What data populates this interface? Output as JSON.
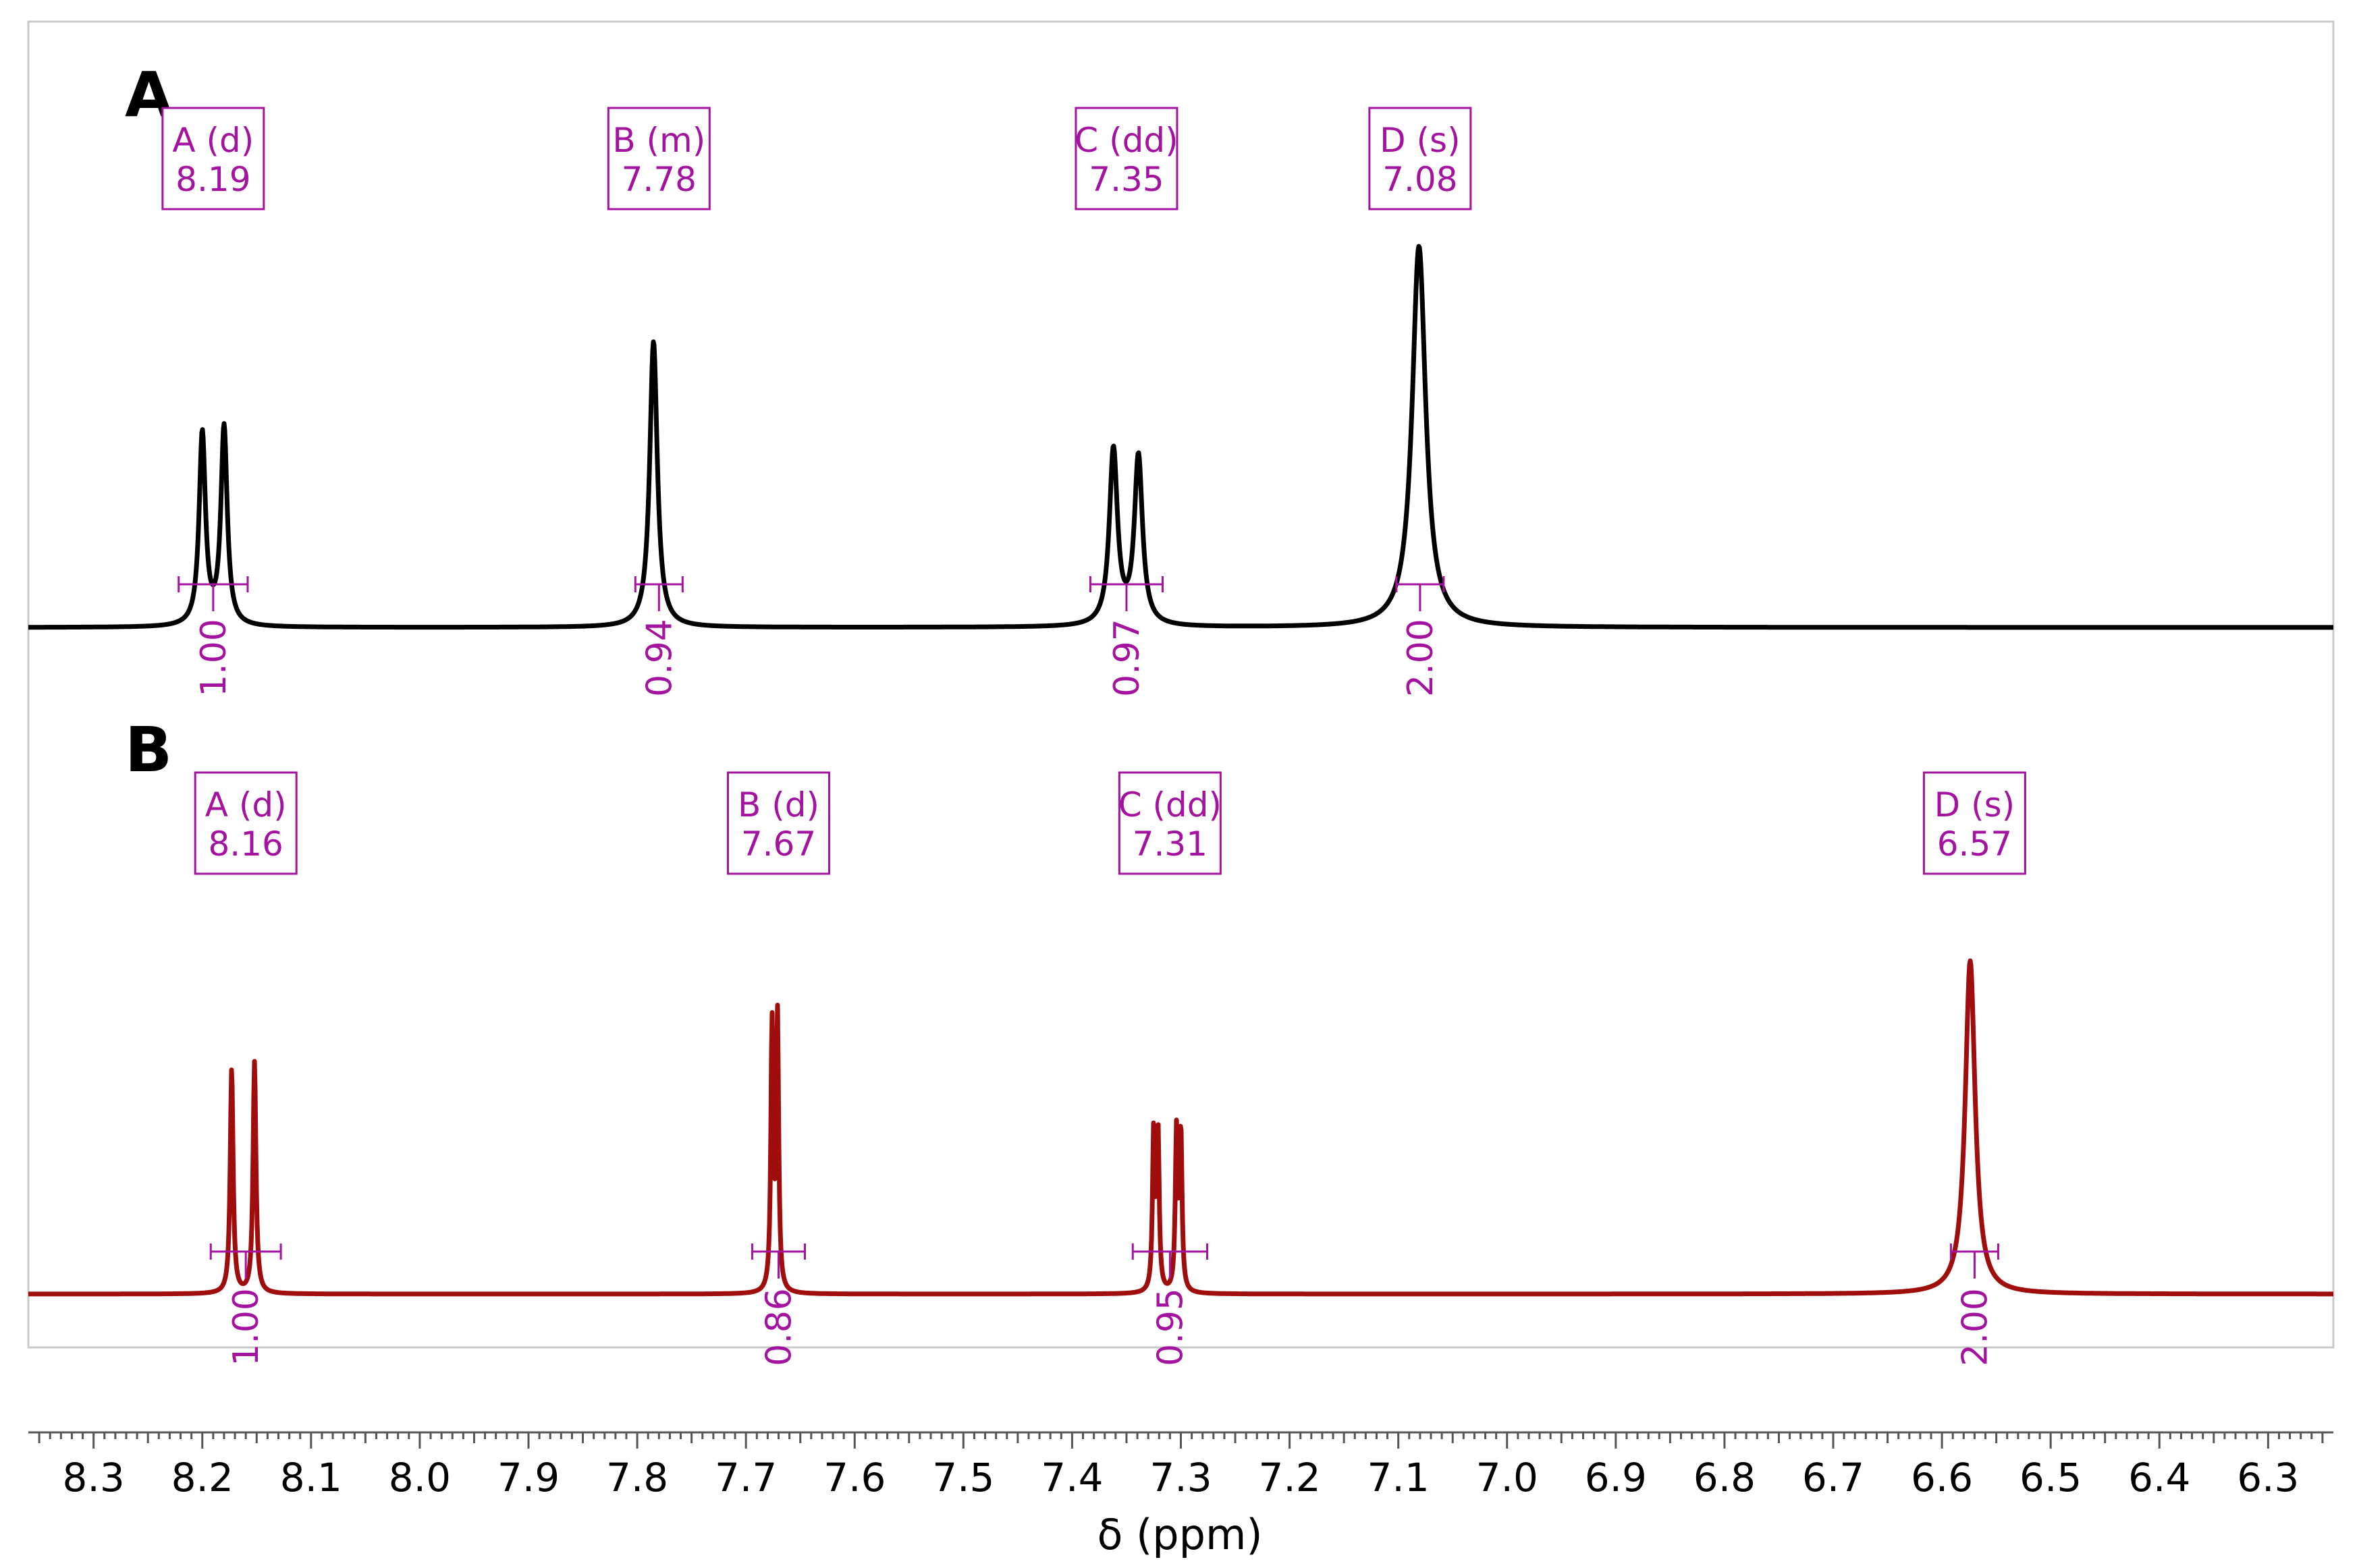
{
  "chart_data": {
    "type": "line",
    "xlabel": "δ (ppm)",
    "xlim": [
      8.36,
      6.24
    ],
    "x_reversed": true,
    "x_ticks": [
      "8.3",
      "8.2",
      "8.1",
      "8.0",
      "7.9",
      "7.8",
      "7.7",
      "7.6",
      "7.5",
      "7.4",
      "7.3",
      "7.2",
      "7.1",
      "7.0",
      "6.9",
      "6.8",
      "6.7",
      "6.6",
      "6.5",
      "6.4",
      "6.3"
    ],
    "grid": false,
    "series": [
      {
        "name": "A",
        "color": "#000000",
        "peaks": [
          {
            "label_top": "A (d)",
            "label_bottom": "8.19",
            "shift": 8.19,
            "multiplicity": "d",
            "lines": [
              8.2,
              8.18
            ],
            "height": 0.52,
            "width": 0.0035,
            "integral": "1.00"
          },
          {
            "label_top": "B (m)",
            "label_bottom": "7.78",
            "shift": 7.78,
            "multiplicity": "m",
            "lines": [
              7.785
            ],
            "height": 0.75,
            "width": 0.0042,
            "integral": "0.94"
          },
          {
            "label_top": "C (dd)",
            "label_bottom": "7.35",
            "shift": 7.35,
            "multiplicity": "dd",
            "lines": [
              7.362,
              7.339
            ],
            "height": 0.46,
            "width": 0.0045,
            "integral": "0.97"
          },
          {
            "label_top": "D (s)",
            "label_bottom": "7.08",
            "shift": 7.08,
            "multiplicity": "s",
            "lines": [
              7.081
            ],
            "height": 1.0,
            "width": 0.0075,
            "integral": "2.00"
          }
        ]
      },
      {
        "name": "B",
        "color": "#a00d0d",
        "peaks": [
          {
            "label_top": "A (d)",
            "label_bottom": "8.16",
            "shift": 8.16,
            "multiplicity": "d",
            "lines": [
              8.173,
              8.152
            ],
            "height": 0.66,
            "width": 0.0016,
            "integral": "1.00"
          },
          {
            "label_top": "B (d)",
            "label_bottom": "7.67",
            "shift": 7.67,
            "multiplicity": "d",
            "lines": [
              7.676,
              7.671
            ],
            "height": 0.78,
            "width": 0.0013,
            "integral": "0.86"
          },
          {
            "label_top": "C (dd)",
            "label_bottom": "7.31",
            "shift": 7.31,
            "multiplicity": "dd",
            "lines": [
              7.325,
              7.321,
              7.304,
              7.3
            ],
            "height": 0.45,
            "width": 0.0013,
            "integral": "0.95"
          },
          {
            "label_top": "D (s)",
            "label_bottom": "6.57",
            "shift": 6.57,
            "multiplicity": "s",
            "lines": [
              6.574
            ],
            "height": 0.95,
            "width": 0.0055,
            "integral": "2.00"
          }
        ]
      }
    ]
  },
  "colors": {
    "annotation": "#a3139f",
    "frame": "#c8c8c8"
  }
}
